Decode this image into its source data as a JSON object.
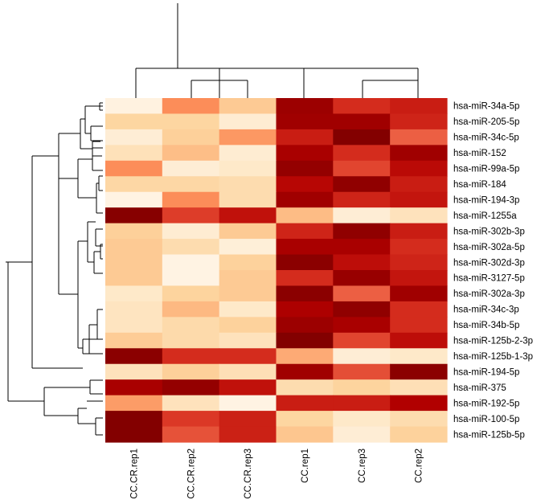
{
  "chart_data": {
    "type": "heatmap",
    "title": "",
    "xlabel": "",
    "ylabel": "",
    "colormap": "OrRd",
    "colormap_stops": [
      "#fff7ec",
      "#fee8c8",
      "#fdd49e",
      "#fdbb84",
      "#fc8d59",
      "#ef6548",
      "#d7301f",
      "#b30000",
      "#7f0000"
    ],
    "columns": [
      "CC.CR.rep1",
      "CC.CR.rep2",
      "CC.CR.rep3",
      "CC.rep1",
      "CC.rep3",
      "CC.rep2"
    ],
    "rows": [
      "hsa-miR-34a-5p",
      "hsa-miR-205-5p",
      "hsa-miR-34c-5p",
      "hsa-miR-152",
      "hsa-miR-99a-5p",
      "hsa-miR-184",
      "hsa-miR-194-3p",
      "hsa-miR-1255a",
      "hsa-miR-302b-3p",
      "hsa-miR-302a-5p",
      "hsa-miR-302d-3p",
      "hsa-miR-3127-5p",
      "hsa-miR-302a-3p",
      "hsa-miR-34c-3p",
      "hsa-miR-34b-5p",
      "hsa-miR-125b-2-3p",
      "hsa-miR-125b-1-3p",
      "hsa-miR-194-5p",
      "hsa-miR-375",
      "hsa-miR-192-5p",
      "hsa-miR-100-5p",
      "hsa-miR-125b-5p"
    ],
    "values": [
      [
        0.04,
        0.5,
        0.3,
        0.93,
        0.76,
        0.8
      ],
      [
        0.24,
        0.24,
        0.09,
        0.92,
        0.92,
        0.78
      ],
      [
        0.08,
        0.27,
        0.47,
        0.8,
        0.99,
        0.64
      ],
      [
        0.17,
        0.36,
        0.09,
        0.9,
        0.76,
        0.92
      ],
      [
        0.5,
        0.08,
        0.12,
        0.95,
        0.7,
        0.85
      ],
      [
        0.23,
        0.23,
        0.2,
        0.86,
        0.96,
        0.8
      ],
      [
        0.03,
        0.5,
        0.2,
        0.92,
        0.78,
        0.82
      ],
      [
        0.98,
        0.72,
        0.83,
        0.37,
        0.08,
        0.16
      ],
      [
        0.27,
        0.09,
        0.3,
        0.78,
        0.96,
        0.8
      ],
      [
        0.3,
        0.2,
        0.07,
        0.9,
        0.9,
        0.76
      ],
      [
        0.3,
        0.03,
        0.26,
        0.97,
        0.84,
        0.78
      ],
      [
        0.3,
        0.03,
        0.3,
        0.76,
        0.94,
        0.82
      ],
      [
        0.12,
        0.25,
        0.3,
        0.97,
        0.64,
        0.92
      ],
      [
        0.15,
        0.38,
        0.12,
        0.89,
        0.96,
        0.76
      ],
      [
        0.15,
        0.21,
        0.26,
        0.93,
        0.9,
        0.76
      ],
      [
        0.29,
        0.21,
        0.16,
        0.99,
        0.7,
        0.84
      ],
      [
        0.97,
        0.76,
        0.76,
        0.42,
        0.08,
        0.12
      ],
      [
        0.16,
        0.27,
        0.18,
        0.92,
        0.68,
        0.97
      ],
      [
        0.9,
        0.95,
        0.83,
        0.2,
        0.25,
        0.18
      ],
      [
        0.46,
        0.16,
        0.03,
        0.8,
        0.8,
        0.88
      ],
      [
        0.99,
        0.73,
        0.79,
        0.24,
        0.12,
        0.2
      ],
      [
        0.99,
        0.67,
        0.79,
        0.32,
        0.08,
        0.26
      ]
    ]
  }
}
